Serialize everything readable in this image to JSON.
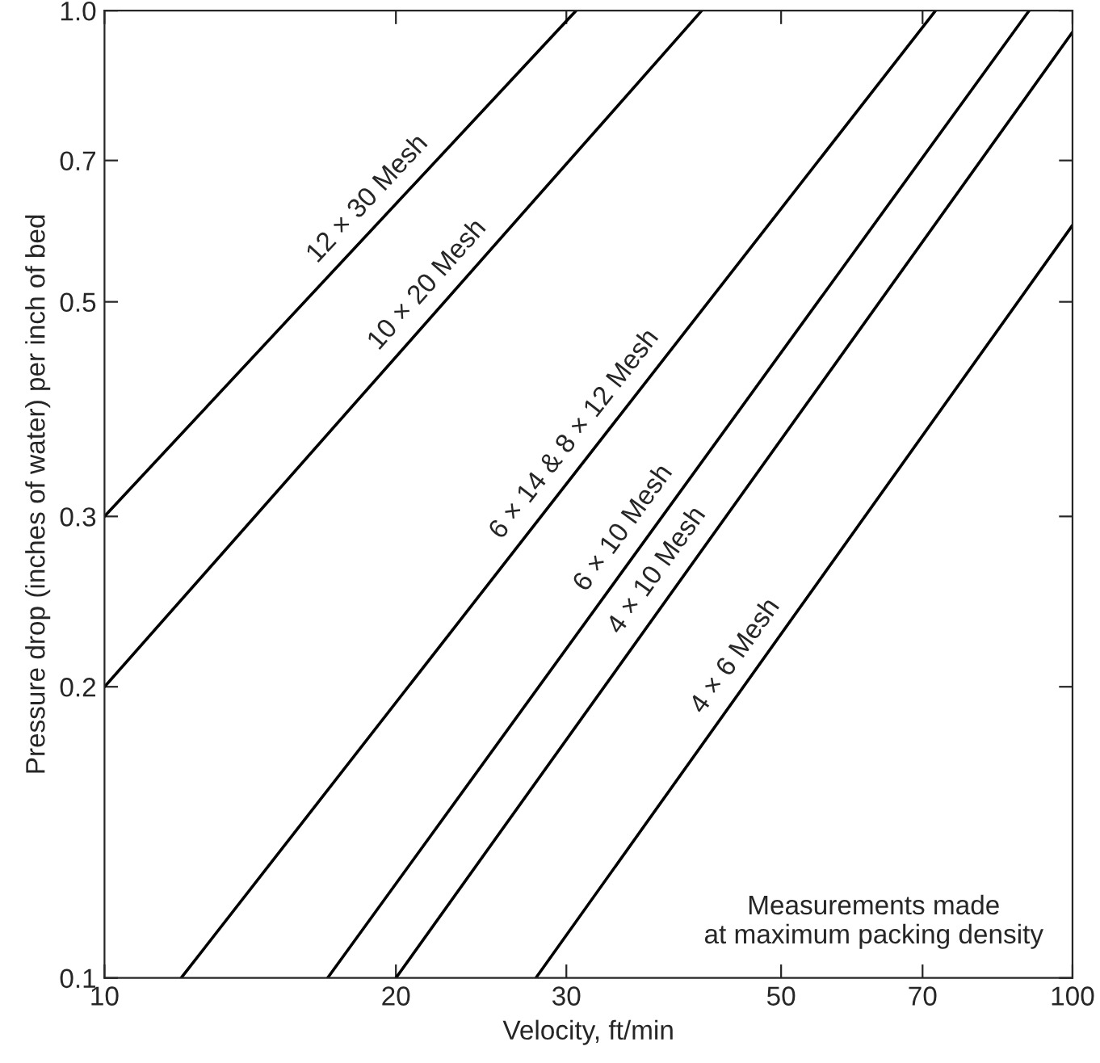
{
  "chart_data": {
    "type": "line",
    "xlabel": "Velocity, ft/min",
    "ylabel": "Pressure drop (inches of water) per inch of bed",
    "log": "xy",
    "grid": false,
    "legend": false,
    "marker": "none",
    "line_style": "solid",
    "xlim": [
      10,
      100
    ],
    "xticks": [
      10,
      20,
      30,
      50,
      70,
      100
    ],
    "ylim": [
      0.1,
      1.0
    ],
    "yticks": [
      0.1,
      0.2,
      0.3,
      0.5,
      0.7,
      {
        "value": 1.0,
        "label": "1.0"
      }
    ],
    "series": [
      {
        "color": "#000000",
        "x": [
          10,
          30.7
        ],
        "values": [
          0.3,
          1.0
        ]
      },
      {
        "color": "#000000",
        "x": [
          10,
          41.4
        ],
        "values": [
          0.2,
          1.0
        ]
      },
      {
        "color": "#000000",
        "x": [
          12.0,
          72.2
        ],
        "values": [
          0.1,
          1.0
        ]
      },
      {
        "color": "#000000",
        "x": [
          17.0,
          90.2
        ],
        "values": [
          0.1,
          1.0
        ]
      },
      {
        "color": "#000000",
        "x": [
          20.0,
          100
        ],
        "values": [
          0.1,
          0.95
        ]
      },
      {
        "color": "#000000",
        "x": [
          27.9,
          100
        ],
        "values": [
          0.1,
          0.6
        ]
      }
    ],
    "annotations": [
      {
        "text": "12 × 30 Mesh",
        "x": 19.5,
        "y": 0.614
      },
      {
        "text": "10 × 20 Mesh",
        "x": 22.5,
        "y": 0.501
      },
      {
        "text": "6 × 14 & 8 × 12 Mesh",
        "x": 32,
        "y": 0.352
      },
      {
        "text": "6 × 10 Mesh",
        "x": 36,
        "y": 0.282
      },
      {
        "text": "4 × 10 Mesh",
        "x": 39,
        "y": 0.255
      },
      {
        "text": "4 × 6 Mesh",
        "x": 47,
        "y": 0.208
      },
      "Measurements made\nat maximum packing density"
    ]
  }
}
